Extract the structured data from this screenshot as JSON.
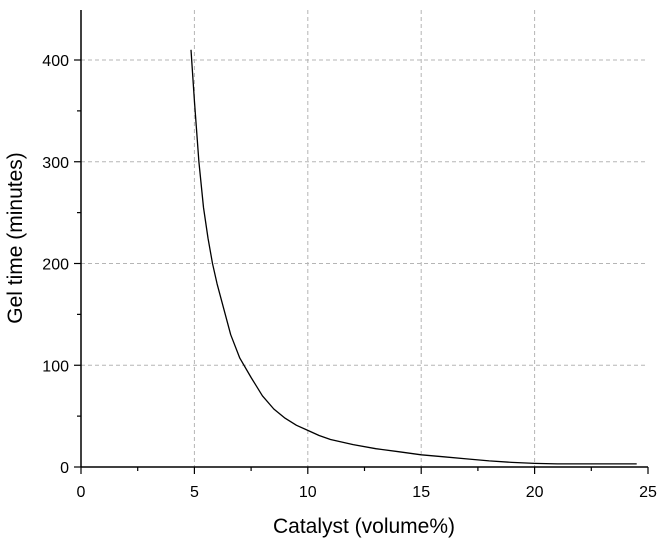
{
  "chart_data": {
    "type": "line",
    "xlabel": "Catalyst (volume%)",
    "ylabel": "Gel time (minutes)",
    "xlim": [
      0,
      25
    ],
    "ylim": [
      0,
      450
    ],
    "x_ticks": [
      "0",
      "5",
      "10",
      "15",
      "20",
      "25"
    ],
    "y_ticks": [
      "0",
      "100",
      "200",
      "300",
      "400"
    ],
    "grid": true,
    "series": [
      {
        "x": [
          4.85,
          5.0,
          5.2,
          5.4,
          5.6,
          5.8,
          6.0,
          6.3,
          6.6,
          7.0,
          7.5,
          8.0,
          8.5,
          9.0,
          9.5,
          10.0,
          10.5,
          11.0,
          12.0,
          13.0,
          14.0,
          15.0,
          16.0,
          17.0,
          18.0,
          19.0,
          20.0,
          21.0,
          22.0,
          23.0,
          24.5
        ],
        "y": [
          410,
          360,
          300,
          255,
          225,
          200,
          180,
          155,
          130,
          107,
          88,
          70,
          57,
          48,
          41,
          36,
          31,
          27,
          22,
          18,
          15,
          12,
          10,
          8,
          6,
          4.5,
          3.5,
          3,
          3,
          3,
          3
        ]
      }
    ],
    "colors": {
      "line": "#000000",
      "grid": "#b5b5b5",
      "axis": "#000000"
    }
  }
}
